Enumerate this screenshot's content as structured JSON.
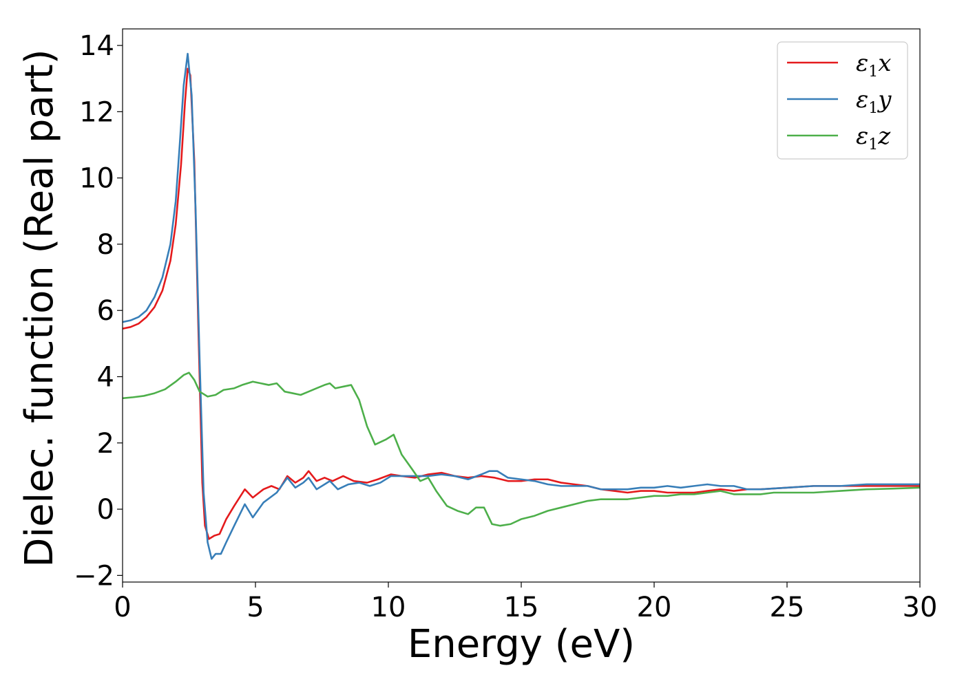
{
  "chart_data": {
    "type": "line",
    "xlabel": "Energy (eV)",
    "ylabel": "Dielec. function (Real part)",
    "xlim": [
      0,
      30
    ],
    "ylim": [
      -2.2,
      14.5
    ],
    "xticks": [
      0,
      5,
      10,
      15,
      20,
      25,
      30
    ],
    "xtick_labels": [
      "0",
      "5",
      "10",
      "15",
      "20",
      "25",
      "30"
    ],
    "yticks": [
      -2,
      0,
      2,
      4,
      6,
      8,
      10,
      12,
      14
    ],
    "ytick_labels": [
      "−2",
      "0",
      "2",
      "4",
      "6",
      "8",
      "10",
      "12",
      "14"
    ],
    "grid": false,
    "legend_position": "top-right",
    "series": [
      {
        "name": "ε",
        "sub": "1",
        "suffix": "x",
        "color": "#e41a1c",
        "points": [
          [
            0,
            5.45
          ],
          [
            0.3,
            5.5
          ],
          [
            0.6,
            5.6
          ],
          [
            0.9,
            5.8
          ],
          [
            1.2,
            6.1
          ],
          [
            1.5,
            6.6
          ],
          [
            1.8,
            7.5
          ],
          [
            2.0,
            8.6
          ],
          [
            2.2,
            10.4
          ],
          [
            2.35,
            12.3
          ],
          [
            2.45,
            13.3
          ],
          [
            2.55,
            13.1
          ],
          [
            2.7,
            10.5
          ],
          [
            2.85,
            5.5
          ],
          [
            3.0,
            0.8
          ],
          [
            3.1,
            -0.5
          ],
          [
            3.25,
            -0.9
          ],
          [
            3.45,
            -0.8
          ],
          [
            3.65,
            -0.75
          ],
          [
            3.9,
            -0.3
          ],
          [
            4.2,
            0.1
          ],
          [
            4.6,
            0.6
          ],
          [
            4.9,
            0.35
          ],
          [
            5.3,
            0.6
          ],
          [
            5.6,
            0.7
          ],
          [
            5.9,
            0.6
          ],
          [
            6.2,
            1.0
          ],
          [
            6.5,
            0.8
          ],
          [
            6.8,
            0.95
          ],
          [
            7.0,
            1.15
          ],
          [
            7.3,
            0.85
          ],
          [
            7.6,
            0.95
          ],
          [
            7.9,
            0.85
          ],
          [
            8.3,
            1.0
          ],
          [
            8.7,
            0.85
          ],
          [
            9.2,
            0.8
          ],
          [
            9.6,
            0.9
          ],
          [
            10.1,
            1.05
          ],
          [
            10.5,
            1.0
          ],
          [
            11.0,
            0.95
          ],
          [
            11.5,
            1.05
          ],
          [
            12.0,
            1.1
          ],
          [
            12.5,
            1.0
          ],
          [
            13.0,
            0.95
          ],
          [
            13.5,
            1.0
          ],
          [
            14.0,
            0.95
          ],
          [
            14.5,
            0.85
          ],
          [
            15.0,
            0.85
          ],
          [
            15.5,
            0.9
          ],
          [
            16.0,
            0.9
          ],
          [
            16.5,
            0.8
          ],
          [
            17.0,
            0.75
          ],
          [
            17.5,
            0.7
          ],
          [
            18.0,
            0.6
          ],
          [
            18.5,
            0.55
          ],
          [
            19.0,
            0.5
          ],
          [
            19.5,
            0.55
          ],
          [
            20.0,
            0.55
          ],
          [
            20.5,
            0.5
          ],
          [
            21.0,
            0.5
          ],
          [
            21.5,
            0.5
          ],
          [
            22.0,
            0.55
          ],
          [
            22.5,
            0.6
          ],
          [
            23.0,
            0.55
          ],
          [
            23.5,
            0.6
          ],
          [
            24.0,
            0.6
          ],
          [
            25.0,
            0.65
          ],
          [
            26.0,
            0.7
          ],
          [
            27.0,
            0.7
          ],
          [
            28.0,
            0.7
          ],
          [
            29.0,
            0.7
          ],
          [
            30.0,
            0.7
          ]
        ]
      },
      {
        "name": "ε",
        "sub": "1",
        "suffix": "y",
        "color": "#377eb8",
        "points": [
          [
            0,
            5.65
          ],
          [
            0.3,
            5.7
          ],
          [
            0.6,
            5.8
          ],
          [
            0.9,
            6.0
          ],
          [
            1.2,
            6.4
          ],
          [
            1.5,
            7.0
          ],
          [
            1.8,
            8.0
          ],
          [
            2.0,
            9.3
          ],
          [
            2.15,
            11.0
          ],
          [
            2.3,
            12.8
          ],
          [
            2.45,
            13.75
          ],
          [
            2.6,
            12.5
          ],
          [
            2.75,
            9.0
          ],
          [
            2.9,
            4.5
          ],
          [
            3.05,
            0.5
          ],
          [
            3.2,
            -1.0
          ],
          [
            3.35,
            -1.5
          ],
          [
            3.5,
            -1.35
          ],
          [
            3.7,
            -1.35
          ],
          [
            3.9,
            -1.0
          ],
          [
            4.2,
            -0.5
          ],
          [
            4.6,
            0.15
          ],
          [
            4.9,
            -0.25
          ],
          [
            5.3,
            0.2
          ],
          [
            5.8,
            0.5
          ],
          [
            6.2,
            0.95
          ],
          [
            6.5,
            0.65
          ],
          [
            6.8,
            0.8
          ],
          [
            7.0,
            0.95
          ],
          [
            7.3,
            0.6
          ],
          [
            7.6,
            0.75
          ],
          [
            7.8,
            0.85
          ],
          [
            8.1,
            0.6
          ],
          [
            8.5,
            0.75
          ],
          [
            8.9,
            0.8
          ],
          [
            9.3,
            0.7
          ],
          [
            9.7,
            0.8
          ],
          [
            10.1,
            1.0
          ],
          [
            10.5,
            1.0
          ],
          [
            11.0,
            1.0
          ],
          [
            11.5,
            1.0
          ],
          [
            12.0,
            1.05
          ],
          [
            12.5,
            1.0
          ],
          [
            13.0,
            0.9
          ],
          [
            13.5,
            1.05
          ],
          [
            13.8,
            1.15
          ],
          [
            14.1,
            1.15
          ],
          [
            14.5,
            0.95
          ],
          [
            15.0,
            0.9
          ],
          [
            15.5,
            0.85
          ],
          [
            16.0,
            0.75
          ],
          [
            16.5,
            0.7
          ],
          [
            17.0,
            0.7
          ],
          [
            17.5,
            0.7
          ],
          [
            18.0,
            0.6
          ],
          [
            18.5,
            0.6
          ],
          [
            19.0,
            0.6
          ],
          [
            19.5,
            0.65
          ],
          [
            20.0,
            0.65
          ],
          [
            20.5,
            0.7
          ],
          [
            21.0,
            0.65
          ],
          [
            21.5,
            0.7
          ],
          [
            22.0,
            0.75
          ],
          [
            22.5,
            0.7
          ],
          [
            23.0,
            0.7
          ],
          [
            23.5,
            0.6
          ],
          [
            24.0,
            0.6
          ],
          [
            25.0,
            0.65
          ],
          [
            26.0,
            0.7
          ],
          [
            27.0,
            0.7
          ],
          [
            28.0,
            0.75
          ],
          [
            29.0,
            0.75
          ],
          [
            30.0,
            0.75
          ]
        ]
      },
      {
        "name": "ε",
        "sub": "1",
        "suffix": "z",
        "color": "#4daf4a",
        "points": [
          [
            0,
            3.35
          ],
          [
            0.4,
            3.38
          ],
          [
            0.8,
            3.42
          ],
          [
            1.2,
            3.5
          ],
          [
            1.6,
            3.62
          ],
          [
            2.0,
            3.85
          ],
          [
            2.3,
            4.05
          ],
          [
            2.5,
            4.12
          ],
          [
            2.7,
            3.9
          ],
          [
            2.9,
            3.55
          ],
          [
            3.2,
            3.4
          ],
          [
            3.5,
            3.45
          ],
          [
            3.8,
            3.6
          ],
          [
            4.2,
            3.65
          ],
          [
            4.5,
            3.75
          ],
          [
            4.9,
            3.85
          ],
          [
            5.2,
            3.8
          ],
          [
            5.5,
            3.75
          ],
          [
            5.8,
            3.8
          ],
          [
            6.1,
            3.55
          ],
          [
            6.4,
            3.5
          ],
          [
            6.7,
            3.45
          ],
          [
            7.0,
            3.55
          ],
          [
            7.3,
            3.65
          ],
          [
            7.6,
            3.75
          ],
          [
            7.8,
            3.8
          ],
          [
            8.0,
            3.65
          ],
          [
            8.3,
            3.7
          ],
          [
            8.6,
            3.75
          ],
          [
            8.9,
            3.3
          ],
          [
            9.2,
            2.5
          ],
          [
            9.5,
            1.95
          ],
          [
            9.9,
            2.1
          ],
          [
            10.2,
            2.25
          ],
          [
            10.5,
            1.65
          ],
          [
            10.9,
            1.2
          ],
          [
            11.2,
            0.85
          ],
          [
            11.5,
            0.95
          ],
          [
            11.8,
            0.55
          ],
          [
            12.2,
            0.1
          ],
          [
            12.6,
            -0.05
          ],
          [
            13.0,
            -0.15
          ],
          [
            13.3,
            0.05
          ],
          [
            13.6,
            0.05
          ],
          [
            13.9,
            -0.45
          ],
          [
            14.2,
            -0.5
          ],
          [
            14.6,
            -0.45
          ],
          [
            15.0,
            -0.3
          ],
          [
            15.5,
            -0.2
          ],
          [
            16.0,
            -0.05
          ],
          [
            16.5,
            0.05
          ],
          [
            17.0,
            0.15
          ],
          [
            17.5,
            0.25
          ],
          [
            18.0,
            0.3
          ],
          [
            18.5,
            0.3
          ],
          [
            19.0,
            0.3
          ],
          [
            19.5,
            0.35
          ],
          [
            20.0,
            0.4
          ],
          [
            20.5,
            0.4
          ],
          [
            21.0,
            0.45
          ],
          [
            21.5,
            0.45
          ],
          [
            22.0,
            0.5
          ],
          [
            22.5,
            0.55
          ],
          [
            23.0,
            0.45
          ],
          [
            23.5,
            0.45
          ],
          [
            24.0,
            0.45
          ],
          [
            24.5,
            0.5
          ],
          [
            25.0,
            0.5
          ],
          [
            25.5,
            0.5
          ],
          [
            26.0,
            0.5
          ],
          [
            27.0,
            0.55
          ],
          [
            28.0,
            0.6
          ],
          [
            29.0,
            0.62
          ],
          [
            30.0,
            0.65
          ]
        ]
      }
    ]
  }
}
